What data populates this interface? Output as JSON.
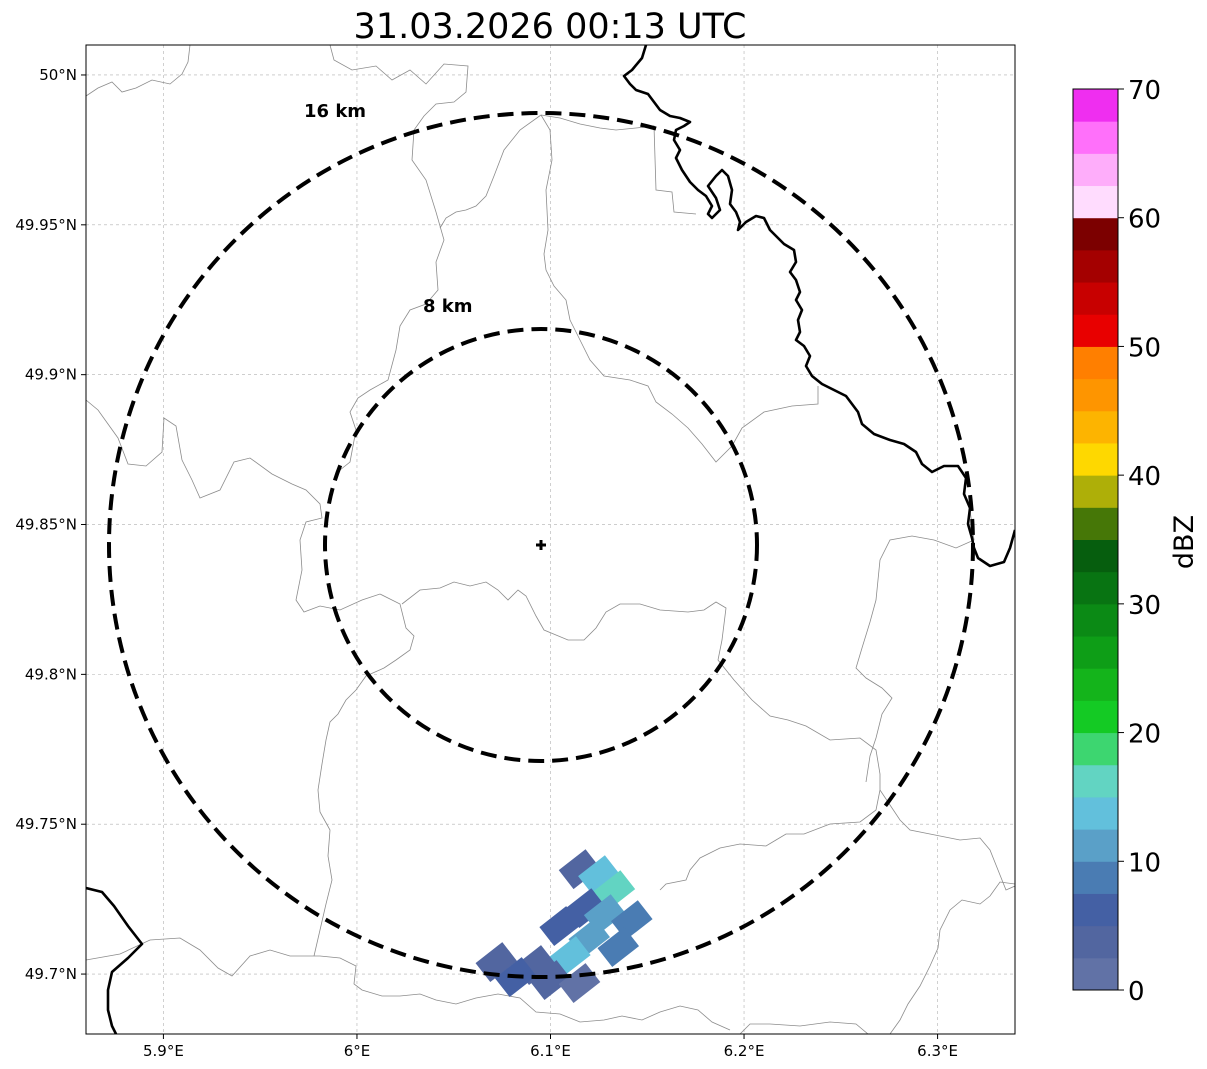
{
  "chart_data": {
    "type": "heatmap",
    "title": "31.03.2026 00:13 UTC",
    "xlabel": "",
    "ylabel": "",
    "xlim": [
      5.86,
      6.34
    ],
    "ylim": [
      49.68,
      50.01
    ],
    "x_ticks": [
      5.9,
      6.0,
      6.1,
      6.2,
      6.3
    ],
    "x_tick_labels": [
      "5.9°E",
      "6°E",
      "6.1°E",
      "6.2°E",
      "6.3°E"
    ],
    "y_ticks": [
      50.0,
      49.95,
      49.9,
      49.85,
      49.8,
      49.75,
      49.7
    ],
    "y_tick_labels": [
      "50°N",
      "49.95°N",
      "49.9°N",
      "49.85°N",
      "49.8°N",
      "49.75°N",
      "49.7°N"
    ],
    "grid": true,
    "radar_center": {
      "lon": 6.095,
      "lat": 49.843
    },
    "range_rings": [
      {
        "label": "8 km",
        "radius_deg_lat": 0.072
      },
      {
        "label": "16 km",
        "radius_deg_lat": 0.144
      }
    ],
    "colorbar": {
      "label": "dBZ",
      "min": 0,
      "max": 70,
      "step": 2.5,
      "ticks": [
        0,
        10,
        20,
        30,
        40,
        50,
        60,
        70
      ],
      "tick_labels": [
        "0",
        "10",
        "20",
        "30",
        "40",
        "50",
        "60",
        "70"
      ],
      "colors": [
        "#6172a6",
        "#5266a0",
        "#4460a4",
        "#4a7cb3",
        "#5aa0c8",
        "#62c0dc",
        "#62d4c2",
        "#3dd670",
        "#14ca24",
        "#14b41b",
        "#0e9e17",
        "#0b8a15",
        "#087412",
        "#065e0e",
        "#467707",
        "#aeaf08",
        "#fed800",
        "#fdb400",
        "#fe9500",
        "#ff7f00",
        "#e80000",
        "#c80000",
        "#a40000",
        "#7c0000",
        "#ffdcfe",
        "#feadfa",
        "#ff70fa",
        "#ef2ef0"
      ]
    },
    "echo_cells": [
      {
        "lon": 6.115,
        "lat": 49.735,
        "dbz": 3
      },
      {
        "lon": 6.125,
        "lat": 49.733,
        "dbz": 14
      },
      {
        "lon": 6.133,
        "lat": 49.728,
        "dbz": 16
      },
      {
        "lon": 6.118,
        "lat": 49.722,
        "dbz": 5
      },
      {
        "lon": 6.128,
        "lat": 49.72,
        "dbz": 11
      },
      {
        "lon": 6.142,
        "lat": 49.718,
        "dbz": 8
      },
      {
        "lon": 6.105,
        "lat": 49.716,
        "dbz": 6
      },
      {
        "lon": 6.12,
        "lat": 49.712,
        "dbz": 12
      },
      {
        "lon": 6.135,
        "lat": 49.709,
        "dbz": 9
      },
      {
        "lon": 6.11,
        "lat": 49.706,
        "dbz": 13
      },
      {
        "lon": 6.092,
        "lat": 49.703,
        "dbz": 4
      },
      {
        "lon": 6.072,
        "lat": 49.704,
        "dbz": 3
      },
      {
        "lon": 6.082,
        "lat": 49.699,
        "dbz": 6
      },
      {
        "lon": 6.1,
        "lat": 49.698,
        "dbz": 3
      },
      {
        "lon": 6.115,
        "lat": 49.697,
        "dbz": 2
      }
    ]
  }
}
